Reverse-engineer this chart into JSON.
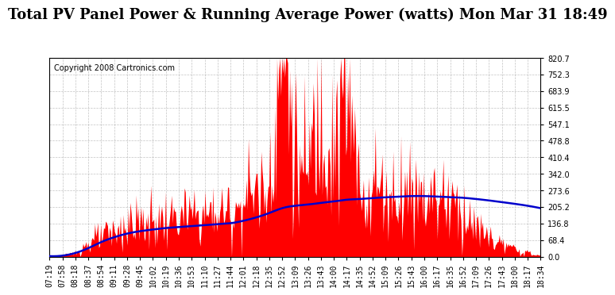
{
  "title": "Total PV Panel Power & Running Average Power (watts) Mon Mar 31 18:49",
  "copyright": "Copyright 2008 Cartronics.com",
  "y_max": 820.7,
  "y_min": 0.0,
  "y_ticks": [
    0.0,
    68.4,
    136.8,
    205.2,
    273.6,
    342.0,
    410.4,
    478.8,
    547.1,
    615.5,
    683.9,
    752.3,
    820.7
  ],
  "x_labels": [
    "07:19",
    "07:58",
    "08:18",
    "08:37",
    "08:54",
    "09:11",
    "09:28",
    "09:45",
    "10:02",
    "10:19",
    "10:36",
    "10:53",
    "11:10",
    "11:27",
    "11:44",
    "12:01",
    "12:18",
    "12:35",
    "12:52",
    "13:09",
    "13:26",
    "13:43",
    "14:00",
    "14:17",
    "14:35",
    "14:52",
    "15:09",
    "15:26",
    "15:43",
    "16:00",
    "16:17",
    "16:35",
    "16:52",
    "17:09",
    "17:26",
    "17:43",
    "18:00",
    "18:17",
    "18:34"
  ],
  "bg_color": "#ffffff",
  "plot_bg": "#ffffff",
  "grid_color": "#aaaaaa",
  "area_color": "#ff0000",
  "line_color": "#0000cc",
  "title_fontsize": 13,
  "copyright_fontsize": 7,
  "axis_label_fontsize": 7
}
